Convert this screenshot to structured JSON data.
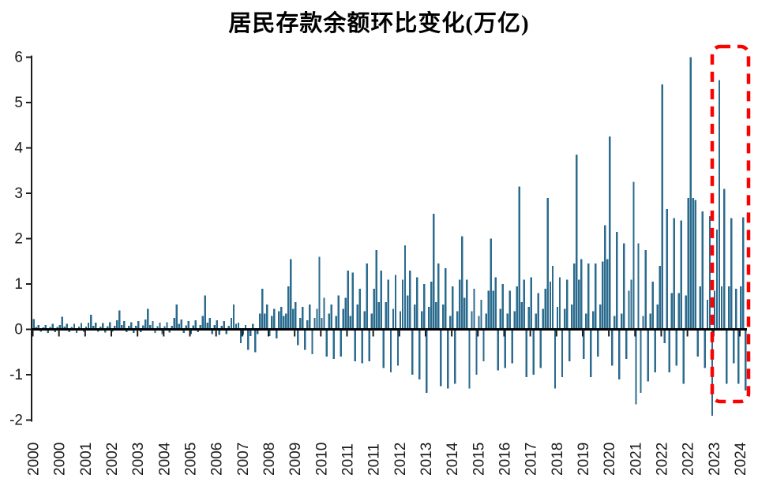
{
  "title": "居民存款余额环比变化(万亿)",
  "colors": {
    "bar": "#2b6b8e",
    "axis": "#000000",
    "tick_label": "#1a1a1a",
    "highlight_box": "#fd0000",
    "background": "#ffffff"
  },
  "y_axis": {
    "tick_labels": [
      "6",
      "5",
      "4",
      "3",
      "2",
      "1",
      "0",
      "-1",
      "-2"
    ],
    "tick_values": [
      6,
      5,
      4,
      3,
      2,
      1,
      0,
      -1,
      -2
    ],
    "min": -2,
    "max": 6
  },
  "x_axis": {
    "tick_labels": [
      "2000",
      "2000",
      "2001",
      "2002",
      "2003",
      "2004",
      "2005",
      "2006",
      "2007",
      "2008",
      "2009",
      "2010",
      "2011",
      "2011",
      "2012",
      "2013",
      "2014",
      "2015",
      "2016",
      "2017",
      "2018",
      "2019",
      "2020",
      "2021",
      "2022",
      "2022",
      "2023",
      "2024"
    ],
    "tick_every_n_bars": 11
  },
  "highlight_box": {
    "covers_label": "2024",
    "style": "red-dashed-rounded-rect"
  },
  "chart_data": {
    "type": "bar",
    "title": "居民存款余额环比变化(万亿)",
    "frequency": "monthly",
    "x_start": "2000-01",
    "x_end": "2024-12",
    "ylabel": "",
    "xlabel": "",
    "ylim": [
      -2,
      6
    ],
    "grid": false,
    "legend": "none",
    "values": [
      0.23,
      0.05,
      0.1,
      -0.05,
      0.04,
      0.1,
      -0.08,
      0.05,
      0.12,
      -0.06,
      0.05,
      0.1,
      0.28,
      0.06,
      0.12,
      -0.06,
      0.05,
      0.12,
      -0.08,
      0.06,
      0.14,
      -0.05,
      0.06,
      0.15,
      0.32,
      0.08,
      0.15,
      -0.05,
      0.06,
      0.14,
      -0.07,
      0.07,
      0.16,
      -0.05,
      0.08,
      0.2,
      0.42,
      0.1,
      0.18,
      -0.06,
      0.08,
      0.16,
      -0.08,
      0.08,
      0.18,
      -0.06,
      0.09,
      0.22,
      0.45,
      0.1,
      0.18,
      -0.08,
      0.07,
      0.15,
      -0.1,
      0.07,
      0.16,
      -0.07,
      0.08,
      0.25,
      0.55,
      0.12,
      0.22,
      -0.08,
      0.09,
      0.18,
      -0.1,
      0.09,
      0.2,
      -0.06,
      0.1,
      0.3,
      0.75,
      0.15,
      0.25,
      -0.1,
      0.1,
      0.2,
      -0.12,
      0.08,
      0.18,
      -0.1,
      0.08,
      0.25,
      0.55,
      0.12,
      0.15,
      -0.3,
      -0.12,
      0.1,
      -0.45,
      -0.15,
      0.12,
      -0.5,
      -0.1,
      0.35,
      0.9,
      0.35,
      0.55,
      -0.15,
      0.3,
      0.45,
      -0.2,
      0.4,
      0.5,
      0.3,
      0.35,
      0.95,
      1.55,
      0.45,
      0.6,
      -0.35,
      0.25,
      0.5,
      -0.45,
      0.2,
      0.55,
      -0.55,
      0.25,
      0.45,
      1.6,
      0.25,
      0.7,
      -0.6,
      0.35,
      0.55,
      -0.65,
      0.3,
      0.75,
      -0.6,
      0.45,
      0.7,
      1.3,
      0.3,
      1.25,
      -0.7,
      0.55,
      0.9,
      -0.75,
      0.4,
      1.45,
      -0.7,
      0.35,
      0.9,
      1.75,
      0.6,
      1.3,
      -0.85,
      0.6,
      1.1,
      -0.95,
      0.45,
      1.2,
      -0.8,
      0.4,
      1.1,
      1.85,
      0.75,
      1.3,
      -1.0,
      0.55,
      1.15,
      -1.1,
      0.4,
      1.0,
      -1.4,
      0.5,
      1.05,
      2.55,
      0.6,
      1.45,
      -1.25,
      0.55,
      1.35,
      -1.3,
      0.3,
      0.95,
      -1.2,
      0.4,
      1.1,
      2.05,
      0.7,
      1.1,
      -1.3,
      0.4,
      0.9,
      -1.0,
      0.3,
      0.65,
      -0.7,
      0.35,
      0.85,
      2.0,
      0.85,
      1.15,
      -0.9,
      0.45,
      1.0,
      -0.85,
      0.35,
      0.85,
      -0.75,
      0.4,
      0.95,
      3.15,
      0.6,
      1.1,
      -1.05,
      0.5,
      1.15,
      -1.0,
      0.35,
      0.8,
      -0.85,
      0.45,
      0.9,
      2.9,
      1.05,
      1.4,
      -1.3,
      0.5,
      1.15,
      -1.05,
      0.45,
      1.1,
      -0.7,
      0.55,
      1.45,
      3.85,
      1.1,
      1.55,
      -0.65,
      0.35,
      1.45,
      -1.05,
      0.4,
      1.45,
      -0.6,
      0.55,
      1.5,
      2.3,
      1.55,
      4.25,
      -0.8,
      0.3,
      2.15,
      -1.1,
      0.35,
      1.9,
      -0.65,
      0.85,
      1.1,
      3.25,
      -1.65,
      1.9,
      -1.4,
      0.3,
      1.75,
      -1.15,
      0.35,
      1.05,
      -0.95,
      0.55,
      1.4,
      5.4,
      -0.3,
      2.65,
      -0.95,
      0.8,
      2.45,
      -0.8,
      0.8,
      2.4,
      -1.2,
      0.75,
      2.9,
      6.0,
      2.9,
      2.85,
      -0.6,
      0.95,
      2.6,
      -0.85,
      0.65,
      2.5,
      -1.9,
      0.85,
      2.2,
      5.5,
      0.95,
      3.1,
      -1.2,
      0.95,
      2.45,
      -0.75,
      0.9,
      -1.2,
      0.95,
      2.47,
      -1.35
    ]
  }
}
